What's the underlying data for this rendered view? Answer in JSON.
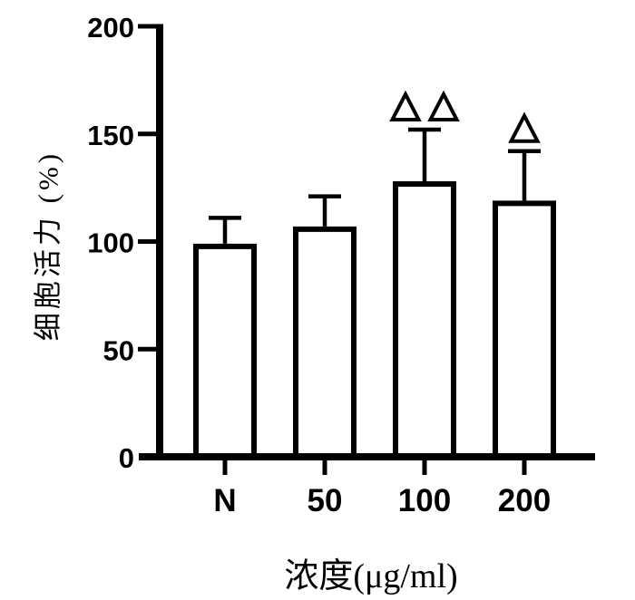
{
  "figure": {
    "background": "#ffffff",
    "ink": "#000000"
  },
  "chart_data": {
    "type": "bar",
    "title": "",
    "categories": [
      "N",
      "50",
      "100",
      "200"
    ],
    "values": [
      99,
      107,
      128,
      119
    ],
    "errors_plus": [
      12,
      14,
      24,
      23
    ],
    "annotations": [
      "",
      "",
      "△△",
      "△"
    ],
    "annotation_symbol_name": "open-triangle",
    "xlabel": "浓度(μg/ml)",
    "ylabel": "细胞活力 (%)",
    "ylim": [
      0,
      200
    ],
    "yticks": [
      0,
      50,
      100,
      150,
      200
    ],
    "bar_fill": "#ffffff",
    "bar_stroke": "#000000",
    "grid": false,
    "legend": "none"
  }
}
